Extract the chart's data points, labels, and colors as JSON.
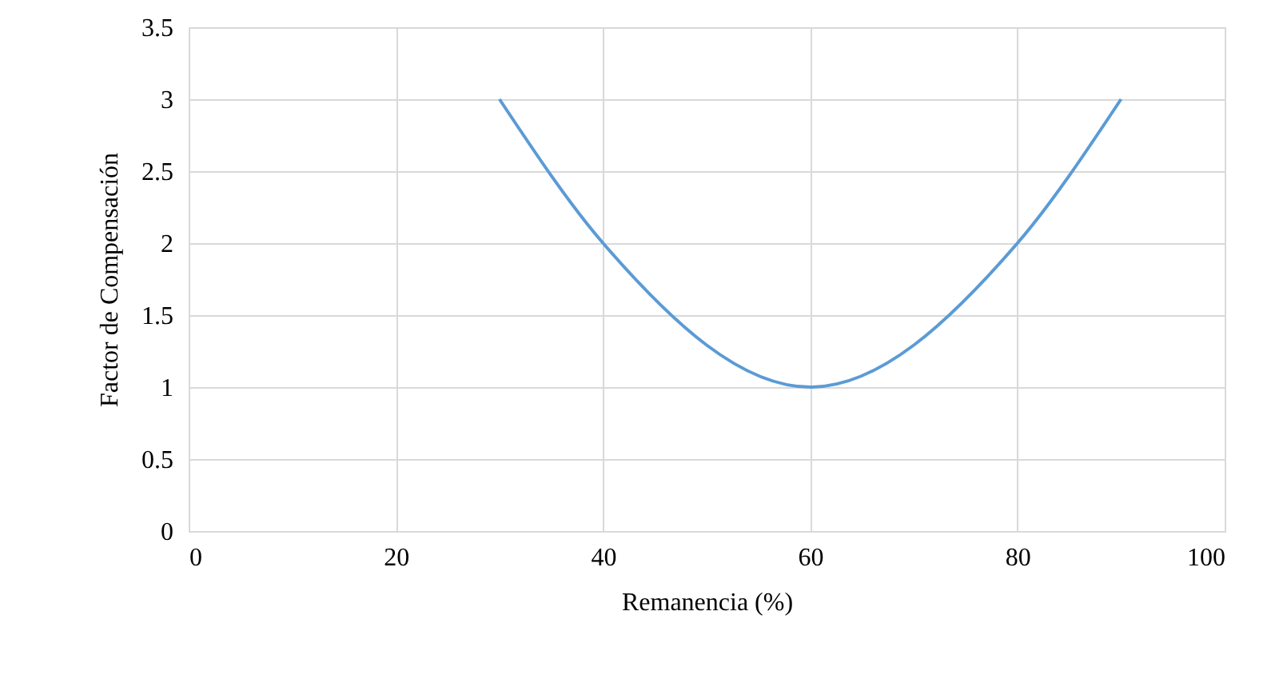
{
  "chart_data": {
    "type": "line",
    "xlabel": "Remanencia (%)",
    "ylabel": "Factor de Compensación",
    "x": [
      30,
      40,
      60,
      80,
      90
    ],
    "series": [
      {
        "color": "#5b9bd5",
        "values": [
          3,
          2,
          1,
          2,
          3
        ]
      }
    ],
    "xlim": [
      0,
      100
    ],
    "xticks": [
      0,
      20,
      40,
      60,
      80,
      100
    ],
    "ylim": [
      0,
      3.5
    ],
    "yticks": [
      0,
      0.5,
      1,
      1.5,
      2,
      2.5,
      3,
      3.5
    ],
    "grid": true,
    "marker": "none",
    "line_style": "solid"
  }
}
